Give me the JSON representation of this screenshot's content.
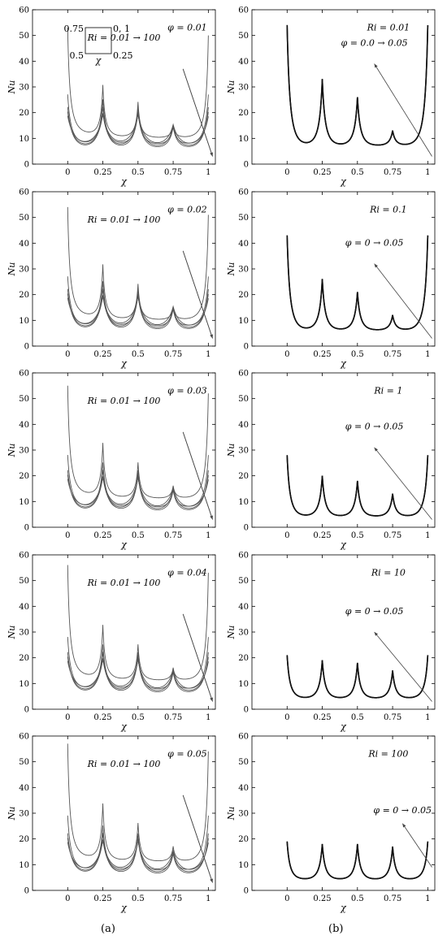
{
  "column_labels": [
    "(a)",
    "(b)"
  ],
  "inset": {
    "tl": "0.75",
    "tr": "0, 1",
    "bl": "0.5",
    "br": "0.25",
    "bottom": "χ"
  },
  "chart_data": [
    {
      "id": "a1",
      "type": "line",
      "column": "a",
      "row": 0,
      "xlabel": "χ",
      "ylabel": "Nu",
      "xticks": [
        0,
        0.25,
        0.5,
        0.75,
        1
      ],
      "yticks": [
        0,
        10,
        20,
        30,
        40,
        50,
        60
      ],
      "ylim": [
        0,
        60
      ],
      "xlim": [
        -0.25,
        1.05
      ],
      "annotation_param": "φ = 0.01",
      "annotation_arrow": "Ri = 0.01 → 100",
      "series_label": "Ri",
      "series_values": [
        0.01,
        0.1,
        1,
        10,
        100
      ],
      "peaks": {
        "0": [
          50,
          27,
          22,
          20,
          18
        ],
        "0.25": [
          30,
          25,
          22,
          19,
          18
        ],
        "0.5": [
          24,
          22,
          20,
          19,
          18
        ],
        "0.75": [
          15,
          15,
          14,
          14,
          14
        ],
        "1": [
          50,
          27,
          22,
          20,
          18
        ]
      },
      "baselines": [
        10,
        7,
        5,
        4.5,
        4
      ]
    },
    {
      "id": "b1",
      "type": "line",
      "column": "b",
      "row": 0,
      "xlabel": "χ",
      "ylabel": "Nu",
      "xticks": [
        0,
        0.25,
        0.5,
        0.75,
        1
      ],
      "yticks": [
        0,
        10,
        20,
        30,
        40,
        50,
        60
      ],
      "ylim": [
        0,
        60
      ],
      "xlim": [
        -0.25,
        1.05
      ],
      "annotation_param": "Ri = 0.01",
      "annotation_arrow": "φ = 0.0 → 0.05",
      "series_label": "φ",
      "series_values": [
        0,
        0.05
      ],
      "peaks": {
        "0": [
          54,
          54
        ],
        "0.25": [
          33,
          33
        ],
        "0.5": [
          26,
          26
        ],
        "0.75": [
          13,
          13
        ],
        "1": [
          54,
          54
        ]
      },
      "baselines": [
        7,
        7
      ]
    },
    {
      "id": "a2",
      "type": "line",
      "column": "a",
      "row": 1,
      "xlabel": "χ",
      "ylabel": "Nu",
      "xticks": [
        0,
        0.25,
        0.5,
        0.75,
        1
      ],
      "yticks": [
        0,
        10,
        20,
        30,
        40,
        50,
        60
      ],
      "ylim": [
        0,
        60
      ],
      "xlim": [
        -0.25,
        1.05
      ],
      "annotation_param": "φ = 0.02",
      "annotation_arrow": "Ri = 0.01 → 100",
      "series_label": "Ri",
      "series_values": [
        0.01,
        0.1,
        1,
        10,
        100
      ],
      "peaks": {
        "0": [
          51,
          27,
          22,
          20,
          18
        ],
        "0.25": [
          31,
          25,
          22,
          19,
          18
        ],
        "0.5": [
          24,
          22,
          20,
          19,
          18
        ],
        "0.75": [
          15,
          15,
          14,
          14,
          14
        ],
        "1": [
          51,
          27,
          22,
          20,
          18
        ]
      },
      "baselines": [
        10,
        7,
        5,
        4.5,
        4
      ]
    },
    {
      "id": "b2",
      "type": "line",
      "column": "b",
      "row": 1,
      "xlabel": "χ",
      "ylabel": "Nu",
      "xticks": [
        0,
        0.25,
        0.5,
        0.75,
        1
      ],
      "yticks": [
        0,
        10,
        20,
        30,
        40,
        50,
        60
      ],
      "ylim": [
        0,
        60
      ],
      "xlim": [
        -0.25,
        1.05
      ],
      "annotation_param": "Ri = 0.1",
      "annotation_arrow": "φ = 0 → 0.05",
      "series_label": "φ",
      "series_values": [
        0,
        0.05
      ],
      "peaks": {
        "0": [
          43,
          43
        ],
        "0.25": [
          26,
          26
        ],
        "0.5": [
          21,
          21
        ],
        "0.75": [
          12,
          12
        ],
        "1": [
          43,
          43
        ]
      },
      "baselines": [
        6,
        6
      ]
    },
    {
      "id": "a3",
      "type": "line",
      "column": "a",
      "row": 2,
      "xlabel": "χ",
      "ylabel": "Nu",
      "xticks": [
        0,
        0.25,
        0.5,
        0.75,
        1
      ],
      "yticks": [
        0,
        10,
        20,
        30,
        40,
        50,
        60
      ],
      "ylim": [
        0,
        60
      ],
      "xlim": [
        -0.25,
        1.05
      ],
      "annotation_param": "φ = 0.03",
      "annotation_arrow": "Ri = 0.01 → 100",
      "series_label": "Ri",
      "series_values": [
        0.01,
        0.1,
        1,
        10,
        100
      ],
      "peaks": {
        "0": [
          52,
          28,
          22,
          20,
          18
        ],
        "0.25": [
          32,
          25,
          22,
          19,
          18
        ],
        "0.5": [
          25,
          22,
          20,
          19,
          18
        ],
        "0.75": [
          16,
          15,
          14,
          14,
          14
        ],
        "1": [
          52,
          28,
          22,
          20,
          18
        ]
      },
      "baselines": [
        11,
        7,
        5,
        4.5,
        4
      ]
    },
    {
      "id": "b3",
      "type": "line",
      "column": "b",
      "row": 2,
      "xlabel": "χ",
      "ylabel": "Nu",
      "xticks": [
        0,
        0.25,
        0.5,
        0.75,
        1
      ],
      "yticks": [
        0,
        10,
        20,
        30,
        40,
        50,
        60
      ],
      "ylim": [
        0,
        60
      ],
      "xlim": [
        -0.25,
        1.05
      ],
      "annotation_param": "Ri = 1",
      "annotation_arrow": "φ = 0 → 0.05",
      "series_label": "φ",
      "series_values": [
        0,
        0.05
      ],
      "peaks": {
        "0": [
          28,
          28
        ],
        "0.25": [
          20,
          20
        ],
        "0.5": [
          18,
          18
        ],
        "0.75": [
          13,
          13
        ],
        "1": [
          28,
          28
        ]
      },
      "baselines": [
        4,
        4
      ]
    },
    {
      "id": "a4",
      "type": "line",
      "column": "a",
      "row": 3,
      "xlabel": "χ",
      "ylabel": "Nu",
      "xticks": [
        0,
        0.25,
        0.5,
        0.75,
        1
      ],
      "yticks": [
        0,
        10,
        20,
        30,
        40,
        50,
        60
      ],
      "ylim": [
        0,
        60
      ],
      "xlim": [
        -0.25,
        1.05
      ],
      "annotation_param": "φ = 0.04",
      "annotation_arrow": "Ri = 0.01 → 100",
      "series_label": "Ri",
      "series_values": [
        0.01,
        0.1,
        1,
        10,
        100
      ],
      "peaks": {
        "0": [
          53,
          28,
          22,
          20,
          18
        ],
        "0.25": [
          32,
          25,
          22,
          19,
          18
        ],
        "0.5": [
          25,
          22,
          20,
          19,
          18
        ],
        "0.75": [
          16,
          15,
          14,
          14,
          14
        ],
        "1": [
          53,
          28,
          22,
          20,
          18
        ]
      },
      "baselines": [
        11,
        7,
        5,
        4.5,
        4
      ]
    },
    {
      "id": "b4",
      "type": "line",
      "column": "b",
      "row": 3,
      "xlabel": "χ",
      "ylabel": "Nu",
      "xticks": [
        0,
        0.25,
        0.5,
        0.75,
        1
      ],
      "yticks": [
        0,
        10,
        20,
        30,
        40,
        50,
        60
      ],
      "ylim": [
        0,
        60
      ],
      "xlim": [
        -0.25,
        1.05
      ],
      "annotation_param": "Ri = 10",
      "annotation_arrow": "φ = 0 → 0.05",
      "series_label": "φ",
      "series_values": [
        0,
        0.05
      ],
      "peaks": {
        "0": [
          21,
          21
        ],
        "0.25": [
          19,
          19
        ],
        "0.5": [
          18,
          18
        ],
        "0.75": [
          15,
          15
        ],
        "1": [
          21,
          21
        ]
      },
      "baselines": [
        4,
        4
      ]
    },
    {
      "id": "a5",
      "type": "line",
      "column": "a",
      "row": 4,
      "xlabel": "χ",
      "ylabel": "Nu",
      "xticks": [
        0,
        0.25,
        0.5,
        0.75,
        1
      ],
      "yticks": [
        0,
        10,
        20,
        30,
        40,
        50,
        60
      ],
      "ylim": [
        0,
        60
      ],
      "xlim": [
        -0.25,
        1.05
      ],
      "annotation_param": "φ = 0.05",
      "annotation_arrow": "Ri = 0.01 → 100",
      "series_label": "Ri",
      "series_values": [
        0.01,
        0.1,
        1,
        10,
        100
      ],
      "peaks": {
        "0": [
          54,
          29,
          22,
          20,
          18
        ],
        "0.25": [
          33,
          25,
          22,
          19,
          18
        ],
        "0.5": [
          26,
          22,
          20,
          19,
          18
        ],
        "0.75": [
          17,
          15,
          14,
          14,
          14
        ],
        "1": [
          54,
          29,
          22,
          20,
          18
        ]
      },
      "baselines": [
        11,
        7,
        5,
        4.5,
        4
      ]
    },
    {
      "id": "b5",
      "type": "line",
      "column": "b",
      "row": 4,
      "xlabel": "χ",
      "ylabel": "Nu",
      "xticks": [
        0,
        0.25,
        0.5,
        0.75,
        1
      ],
      "yticks": [
        0,
        10,
        20,
        30,
        40,
        50,
        60
      ],
      "ylim": [
        0,
        60
      ],
      "xlim": [
        -0.25,
        1.05
      ],
      "annotation_param": "Ri = 100",
      "annotation_arrow": "φ = 0 → 0.05",
      "series_label": "φ",
      "series_values": [
        0,
        0.05
      ],
      "peaks": {
        "0": [
          19,
          19
        ],
        "0.25": [
          18,
          18
        ],
        "0.5": [
          18,
          18
        ],
        "0.75": [
          17,
          17
        ],
        "1": [
          19,
          19
        ]
      },
      "baselines": [
        4,
        4
      ]
    }
  ]
}
